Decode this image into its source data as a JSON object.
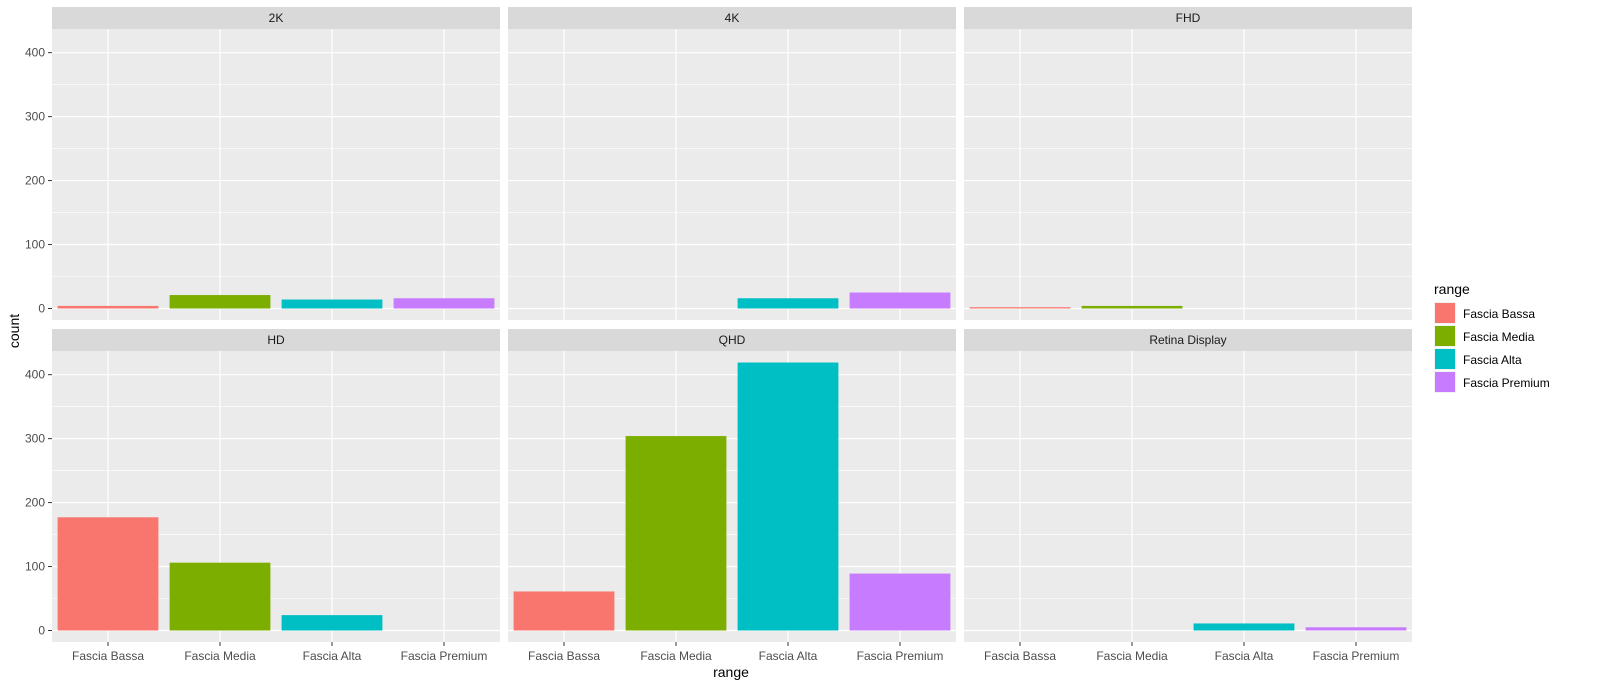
{
  "chart_data": {
    "type": "bar",
    "xlabel": "range",
    "ylabel": "count",
    "ylim": [
      -18,
      437
    ],
    "y_ticks": [
      0,
      100,
      200,
      300,
      400
    ],
    "categories": [
      "Fascia Bassa",
      "Fascia Media",
      "Fascia Alta",
      "Fascia Premium"
    ],
    "legend": {
      "title": "range",
      "placement": "right",
      "entries": [
        {
          "label": "Fascia Bassa",
          "color": "#F8766D"
        },
        {
          "label": "Fascia Media",
          "color": "#7CAE00"
        },
        {
          "label": "Fascia Alta",
          "color": "#00BFC4"
        },
        {
          "label": "Fascia Premium",
          "color": "#C77CFF"
        }
      ]
    },
    "grid": true,
    "facets": [
      {
        "name": "2K",
        "values": [
          4,
          21,
          14,
          16
        ]
      },
      {
        "name": "4K",
        "values": [
          0,
          0,
          16,
          25
        ]
      },
      {
        "name": "FHD",
        "values": [
          2,
          4,
          0,
          0
        ]
      },
      {
        "name": "HD",
        "values": [
          177,
          106,
          24,
          0
        ]
      },
      {
        "name": "QHD",
        "values": [
          61,
          304,
          419,
          89
        ]
      },
      {
        "name": "Retina Display",
        "values": [
          0,
          0,
          11,
          5
        ]
      }
    ]
  }
}
